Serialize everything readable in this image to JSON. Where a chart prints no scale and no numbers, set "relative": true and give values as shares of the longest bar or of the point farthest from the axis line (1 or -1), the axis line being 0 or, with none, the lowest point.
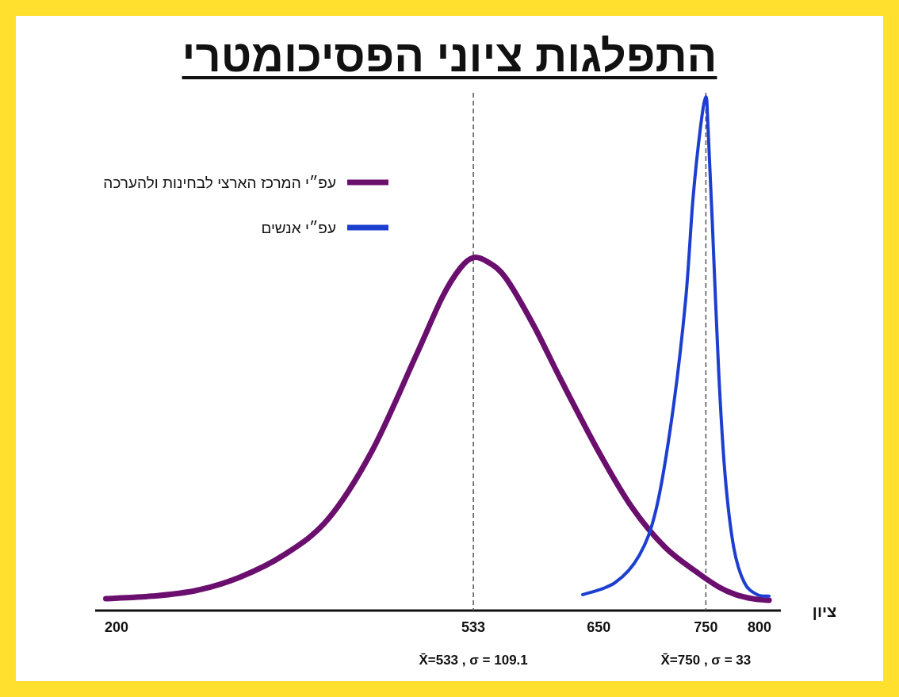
{
  "chart_data": {
    "type": "line",
    "title": "התפלגות ציוני הפסיכומטרי",
    "xlabel": "ציון",
    "relative": true,
    "legend": "top left",
    "tick_labels": "x",
    "line_style": "solid",
    "xlim": [
      180,
      820
    ],
    "xticks": [
      200,
      533,
      650,
      750,
      800
    ],
    "series": [
      {
        "name": "עפ״י המרכז הארצי לבחינות ולהערכה",
        "color": "#6b0f6f",
        "x": [
          190,
          233,
          274,
          315,
          356,
          397,
          438,
          479,
          504,
          521,
          533,
          546,
          563,
          589,
          615,
          650,
          681,
          712,
          742,
          762,
          778,
          794,
          809
        ],
        "values": [
          0.023,
          0.028,
          0.039,
          0.065,
          0.108,
          0.177,
          0.309,
          0.494,
          0.61,
          0.667,
          0.687,
          0.679,
          0.648,
          0.556,
          0.448,
          0.309,
          0.201,
          0.123,
          0.074,
          0.046,
          0.031,
          0.023,
          0.02
        ]
      },
      {
        "name": "עפ״י אנשים",
        "color": "#1c3fd0",
        "x": [
          635,
          665,
          688,
          704,
          719,
          731,
          738,
          745,
          750,
          752,
          756,
          762,
          768,
          776,
          786,
          798,
          809
        ],
        "values": [
          0.031,
          0.054,
          0.108,
          0.201,
          0.386,
          0.602,
          0.802,
          0.941,
          1,
          0.941,
          0.756,
          0.463,
          0.262,
          0.123,
          0.054,
          0.031,
          0.028
        ]
      }
    ],
    "ref_lines": [
      {
        "axis": "x",
        "value": 533,
        "color": "#555555",
        "line_style": "dashed"
      },
      {
        "axis": "x",
        "value": 750,
        "color": "#555555",
        "line_style": "dashed"
      }
    ],
    "annotations": [
      "X̄=533 , σ = 109.1",
      "X̄=750 , σ = 33"
    ]
  }
}
